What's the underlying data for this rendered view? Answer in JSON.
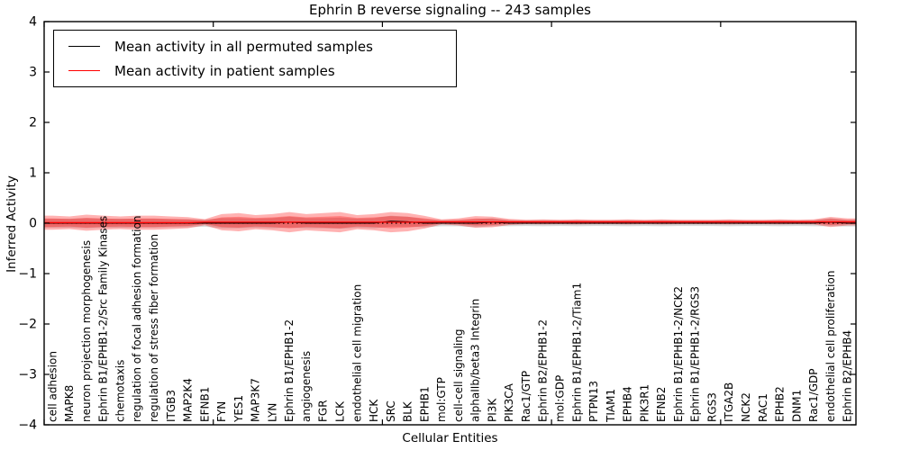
{
  "chart_data": {
    "type": "area",
    "title": "Ephrin B reverse signaling -- 243 samples",
    "xlabel": "Cellular Entities",
    "ylabel": "Inferred Activity",
    "ylim": [
      -4,
      4
    ],
    "ytick_values": [
      4,
      3,
      2,
      1,
      0,
      -1,
      -2,
      -3,
      -4
    ],
    "xtick_positions": [
      0,
      10,
      20,
      30,
      40
    ],
    "grid": false,
    "legend_position": "upper left",
    "zero_line": {
      "y": 0,
      "style": "dotted",
      "color": "#000000"
    },
    "categories": [
      "cell adhesion",
      "MAPK8",
      "neuron projection morphogenesis",
      "Ephrin B1/EPHB1-2/Src Family Kinases",
      "chemotaxis",
      "regulation of focal adhesion formation",
      "regulation of stress fiber formation",
      "ITGB3",
      "MAP2K4",
      "EFNB1",
      "FYN",
      "YES1",
      "MAP3K7",
      "LYN",
      "Ephrin B1/EPHB1-2",
      "angiogenesis",
      "FGR",
      "LCK",
      "endothelial cell migration",
      "HCK",
      "SRC",
      "BLK",
      "EPHB1",
      "mol:GTP",
      "cell-cell signaling",
      "alphaIIb/beta3 Integrin",
      "PI3K",
      "PIK3CA",
      "Rac1/GTP",
      "Ephrin B2/EPHB1-2",
      "mol:GDP",
      "Ephrin B1/EPHB1-2/Tiam1",
      "PTPN13",
      "TIAM1",
      "EPHB4",
      "PIK3R1",
      "EFNB2",
      "Ephrin B1/EPHB1-2/NCK2",
      "Ephrin B1/EPHB1-2/RGS3",
      "RGS3",
      "ITGA2B",
      "NCK2",
      "RAC1",
      "EPHB2",
      "DNM1",
      "Rac1/GDP",
      "endothelial cell proliferation",
      "Ephrin B2/EPHB4"
    ],
    "series": [
      {
        "name": "Mean activity in all permuted samples",
        "color": "#000000",
        "values": [
          0,
          0,
          0,
          0,
          0,
          0,
          0,
          0,
          0,
          0,
          0,
          0,
          0,
          0,
          0.02,
          0,
          0,
          0,
          0,
          0,
          0.04,
          0.03,
          0,
          0,
          0,
          0,
          0.02,
          0,
          0,
          0,
          0,
          0,
          0,
          0,
          0,
          0,
          0,
          0,
          0,
          0,
          0,
          0,
          0,
          0,
          0,
          0,
          0.02,
          0
        ],
        "band_halfwidth": [
          0.09,
          0.09,
          0.1,
          0.09,
          0.09,
          0.09,
          0.09,
          0.08,
          0.08,
          0.07,
          0.1,
          0.1,
          0.09,
          0.1,
          0.11,
          0.1,
          0.1,
          0.11,
          0.09,
          0.1,
          0.11,
          0.1,
          0.08,
          0.06,
          0.06,
          0.08,
          0.08,
          0.06,
          0.055,
          0.06,
          0.055,
          0.06,
          0.055,
          0.055,
          0.06,
          0.055,
          0.06,
          0.055,
          0.055,
          0.055,
          0.06,
          0.055,
          0.055,
          0.06,
          0.055,
          0.06,
          0.08,
          0.065
        ]
      },
      {
        "name": "Mean activity in patient samples",
        "color": "#ff0000",
        "values": [
          0.01,
          0.01,
          0.01,
          0.01,
          0.01,
          0.01,
          0.01,
          0.01,
          0.01,
          0.02,
          0.02,
          0.02,
          0.02,
          0.02,
          0.02,
          0.02,
          0.02,
          0.02,
          0.02,
          0.02,
          0.02,
          0.02,
          0.02,
          0.025,
          0.025,
          0.025,
          0.025,
          0.025,
          0.025,
          0.025,
          0.025,
          0.025,
          0.025,
          0.025,
          0.025,
          0.025,
          0.025,
          0.025,
          0.025,
          0.025,
          0.025,
          0.025,
          0.025,
          0.025,
          0.025,
          0.025,
          0.025,
          0.025
        ],
        "band_halfwidth": [
          0.14,
          0.125,
          0.16,
          0.14,
          0.125,
          0.14,
          0.14,
          0.125,
          0.11,
          0.06,
          0.16,
          0.18,
          0.14,
          0.16,
          0.2,
          0.16,
          0.18,
          0.2,
          0.14,
          0.16,
          0.2,
          0.18,
          0.125,
          0.05,
          0.07,
          0.115,
          0.105,
          0.06,
          0.045,
          0.05,
          0.045,
          0.05,
          0.045,
          0.045,
          0.05,
          0.045,
          0.05,
          0.045,
          0.045,
          0.045,
          0.05,
          0.045,
          0.045,
          0.05,
          0.045,
          0.05,
          0.1,
          0.07
        ]
      }
    ],
    "colors": {
      "patient_line": "#ff0000",
      "permuted_line": "#000000",
      "patient_band": "#ff0000",
      "permuted_band": "#808080",
      "background": "#ffffff",
      "axis": "#000000"
    }
  }
}
